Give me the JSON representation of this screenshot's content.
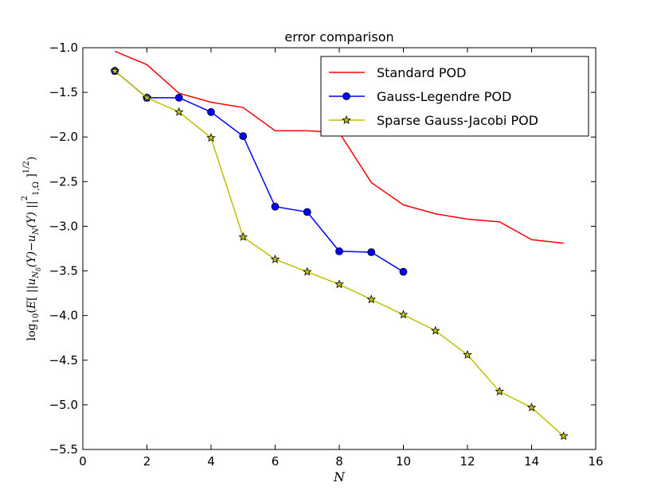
{
  "chart_data": {
    "type": "line",
    "title": "error comparison",
    "xlabel": "N",
    "ylabel": "log10(E[ ||uNδ(Y)−uN(Y)||²1,Ω ]1/2)",
    "xlim": [
      0,
      16
    ],
    "ylim": [
      -5.5,
      -1.0
    ],
    "xticks": [
      0,
      2,
      4,
      6,
      8,
      10,
      12,
      14,
      16
    ],
    "yticks": [
      -1.0,
      -1.5,
      -2.0,
      -2.5,
      -3.0,
      -3.5,
      -4.0,
      -4.5,
      -5.0,
      -5.5
    ],
    "xtick_labels": [
      "0",
      "2",
      "4",
      "6",
      "8",
      "10",
      "12",
      "14",
      "16"
    ],
    "ytick_labels": [
      "−1.0",
      "−1.5",
      "−2.0",
      "−2.5",
      "−3.0",
      "−3.5",
      "−4.0",
      "−4.5",
      "−5.0",
      "−5.5"
    ],
    "grid": false,
    "legend_position": "top-right",
    "series": [
      {
        "name": "Standard POD",
        "color": "#ff0000",
        "marker": "none",
        "x": [
          1,
          2,
          3,
          4,
          5,
          6,
          7,
          8,
          9,
          10,
          11,
          12,
          13,
          14,
          15
        ],
        "y": [
          -1.04,
          -1.19,
          -1.51,
          -1.61,
          -1.67,
          -1.93,
          -1.93,
          -1.95,
          -2.51,
          -2.76,
          -2.86,
          -2.92,
          -2.95,
          -3.15,
          -3.19
        ]
      },
      {
        "name": "Gauss-Legendre POD",
        "color": "#0000ff",
        "marker": "circle",
        "x": [
          1,
          2,
          3,
          4,
          5,
          6,
          7,
          8,
          9,
          10
        ],
        "y": [
          -1.26,
          -1.56,
          -1.56,
          -1.72,
          -1.99,
          -2.78,
          -2.84,
          -3.28,
          -3.29,
          -3.51
        ]
      },
      {
        "name": "Sparse Gauss-Jacobi POD",
        "color": "#bfbf00",
        "marker": "star",
        "x": [
          1,
          2,
          3,
          4,
          5,
          6,
          7,
          8,
          9,
          10,
          11,
          12,
          13,
          14,
          15
        ],
        "y": [
          -1.26,
          -1.56,
          -1.72,
          -2.01,
          -3.12,
          -3.37,
          -3.51,
          -3.65,
          -3.82,
          -3.99,
          -4.17,
          -4.44,
          -4.85,
          -5.03,
          -5.35
        ]
      }
    ]
  }
}
